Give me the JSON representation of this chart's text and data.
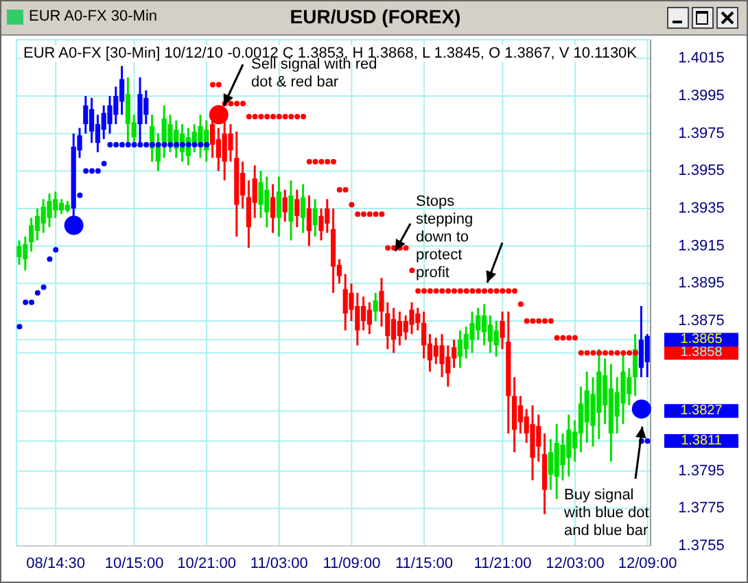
{
  "chart_data": {
    "type": "candlestick",
    "title": "EUR/USD (FOREX)",
    "subtitle": "EUR A0-FX [30-Min] 10/12/10  -0.0012 C 1.3853, H 1.3868, L 1.3845, O 1.3867, V 10.1130K",
    "annotations": [
      "EUR A0-FX 30-Min",
      "Sell signal with red dot & red bar",
      "Stops stepping down to protect profit",
      "Buy signal with blue dot and blue bar"
    ],
    "categories": [
      null,
      null,
      null,
      null,
      null,
      null,
      "08/14:30",
      null,
      null,
      null,
      null,
      null,
      null,
      null,
      null,
      null,
      null,
      null,
      null,
      "10/15:00",
      null,
      null,
      null,
      null,
      null,
      null,
      null,
      null,
      null,
      null,
      null,
      "10/21:00",
      null,
      null,
      null,
      null,
      null,
      null,
      null,
      null,
      null,
      null,
      null,
      "11/03:00",
      null,
      null,
      null,
      null,
      null,
      null,
      null,
      null,
      null,
      null,
      null,
      "11/09:00",
      null,
      null,
      null,
      null,
      null,
      null,
      null,
      null,
      null,
      null,
      null,
      "11/15:00",
      null,
      null,
      null,
      null,
      null,
      null,
      null,
      null,
      null,
      null,
      null,
      null,
      "11/21:00",
      null,
      null,
      null,
      null,
      null,
      null,
      null,
      null,
      null,
      null,
      null,
      "12/03:00",
      null,
      null,
      null,
      null,
      null,
      null,
      null,
      null,
      null,
      null,
      null,
      "12/09:00"
    ],
    "ohlc": [
      [
        1.3909,
        1.3918,
        1.3905,
        1.3915
      ],
      [
        1.3908,
        1.392,
        1.3902,
        1.3916
      ],
      [
        1.3917,
        1.393,
        1.3912,
        1.3926
      ],
      [
        1.3923,
        1.3935,
        1.3918,
        1.3931
      ],
      [
        1.3927,
        1.394,
        1.3922,
        1.3936
      ],
      [
        1.393,
        1.3943,
        1.3925,
        1.3939
      ],
      [
        1.3934,
        1.3944,
        1.393,
        1.394
      ],
      [
        1.3934,
        1.394,
        1.3932,
        1.3938
      ],
      [
        1.3934,
        1.3939,
        1.3933,
        1.3937
      ],
      [
        1.3935,
        1.3975,
        1.3925,
        1.3968
      ],
      [
        1.3966,
        1.3978,
        1.3962,
        1.3974
      ],
      [
        1.398,
        1.3995,
        1.3975,
        1.399
      ],
      [
        1.3976,
        1.3994,
        1.397,
        1.3988
      ],
      [
        1.397,
        1.3985,
        1.3965,
        1.398
      ],
      [
        1.3977,
        1.399,
        1.3972,
        1.3986
      ],
      [
        1.398,
        1.3995,
        1.3975,
        1.399
      ],
      [
        1.3985,
        1.4,
        1.398,
        1.3995
      ],
      [
        1.3992,
        1.4011,
        1.3985,
        1.4004
      ],
      [
        1.398,
        1.4005,
        1.397,
        1.3996
      ],
      [
        1.3973,
        1.3985,
        1.3968,
        1.3981
      ],
      [
        1.398,
        1.4005,
        1.397,
        1.3996
      ],
      [
        1.3985,
        1.3998,
        1.398,
        1.3994
      ],
      [
        1.3967,
        1.3985,
        1.396,
        1.3979
      ],
      [
        1.396,
        1.3975,
        1.3955,
        1.397
      ],
      [
        1.397,
        1.399,
        1.3962,
        1.3983
      ],
      [
        1.397,
        1.3985,
        1.3965,
        1.398
      ],
      [
        1.3967,
        1.3982,
        1.3962,
        1.3977
      ],
      [
        1.3965,
        1.398,
        1.396,
        1.3975
      ],
      [
        1.3963,
        1.3978,
        1.3958,
        1.3973
      ],
      [
        1.3969,
        1.398,
        1.3965,
        1.3976
      ],
      [
        1.3968,
        1.3985,
        1.3962,
        1.3979
      ],
      [
        1.3966,
        1.3982,
        1.396,
        1.3977
      ],
      [
        1.398,
        1.3986,
        1.3962,
        1.3969
      ],
      [
        1.3972,
        1.3978,
        1.3955,
        1.3962
      ],
      [
        1.3975,
        1.3983,
        1.395,
        1.396
      ],
      [
        1.3975,
        1.398,
        1.396,
        1.3966
      ],
      [
        1.3962,
        1.3976,
        1.392,
        1.3937
      ],
      [
        1.3954,
        1.396,
        1.3935,
        1.3942
      ],
      [
        1.3941,
        1.395,
        1.3914,
        1.3925
      ],
      [
        1.3951,
        1.3958,
        1.393,
        1.3938
      ],
      [
        1.3937,
        1.3955,
        1.393,
        1.3949
      ],
      [
        1.3933,
        1.3952,
        1.3925,
        1.3945
      ],
      [
        1.3941,
        1.3948,
        1.3922,
        1.393
      ],
      [
        1.393,
        1.3952,
        1.392,
        1.3944
      ],
      [
        1.3941,
        1.3945,
        1.3928,
        1.3933
      ],
      [
        1.3928,
        1.395,
        1.3918,
        1.3942
      ],
      [
        1.394,
        1.3945,
        1.3925,
        1.3931
      ],
      [
        1.393,
        1.3948,
        1.3922,
        1.3941
      ],
      [
        1.3935,
        1.3942,
        1.3915,
        1.3923
      ],
      [
        1.3926,
        1.394,
        1.392,
        1.3935
      ],
      [
        1.3931,
        1.3935,
        1.3918,
        1.3923
      ],
      [
        1.3935,
        1.394,
        1.3922,
        1.3927
      ],
      [
        1.3924,
        1.3935,
        1.389,
        1.3904
      ],
      [
        1.3905,
        1.3908,
        1.3895,
        1.3899
      ],
      [
        1.3892,
        1.39,
        1.387,
        1.3879
      ],
      [
        1.389,
        1.3895,
        1.3875,
        1.3881
      ],
      [
        1.3883,
        1.389,
        1.3862,
        1.387
      ],
      [
        1.3883,
        1.3888,
        1.387,
        1.3875
      ],
      [
        1.3881,
        1.3885,
        1.3868,
        1.3873
      ],
      [
        1.388,
        1.389,
        1.3875,
        1.3886
      ],
      [
        1.3891,
        1.3898,
        1.3872,
        1.388
      ],
      [
        1.3879,
        1.3885,
        1.386,
        1.3867
      ],
      [
        1.3876,
        1.3882,
        1.3858,
        1.3865
      ],
      [
        1.3875,
        1.388,
        1.3862,
        1.3867
      ],
      [
        1.3875,
        1.3878,
        1.3865,
        1.3869
      ],
      [
        1.3881,
        1.3885,
        1.3868,
        1.3873
      ],
      [
        1.3879,
        1.3882,
        1.387,
        1.3874
      ],
      [
        1.3874,
        1.388,
        1.3855,
        1.3862
      ],
      [
        1.3863,
        1.3868,
        1.3848,
        1.3854
      ],
      [
        1.3862,
        1.3866,
        1.3852,
        1.3856
      ],
      [
        1.3862,
        1.3868,
        1.3845,
        1.3852
      ],
      [
        1.3856,
        1.3862,
        1.384,
        1.3847
      ],
      [
        1.3861,
        1.3865,
        1.385,
        1.3855
      ],
      [
        1.3856,
        1.387,
        1.385,
        1.3865
      ],
      [
        1.386,
        1.3872,
        1.3855,
        1.3868
      ],
      [
        1.3865,
        1.388,
        1.3858,
        1.3874
      ],
      [
        1.387,
        1.3882,
        1.3865,
        1.3878
      ],
      [
        1.3869,
        1.3884,
        1.3862,
        1.3878
      ],
      [
        1.3864,
        1.3878,
        1.3858,
        1.3873
      ],
      [
        1.3862,
        1.3875,
        1.3856,
        1.387
      ],
      [
        1.3875,
        1.388,
        1.386,
        1.3866
      ],
      [
        1.3864,
        1.388,
        1.3815,
        1.3835
      ],
      [
        1.3835,
        1.3845,
        1.3805,
        1.3817
      ],
      [
        1.383,
        1.3835,
        1.3815,
        1.3821
      ],
      [
        1.3824,
        1.3828,
        1.381,
        1.3815
      ],
      [
        1.382,
        1.383,
        1.379,
        1.3802
      ],
      [
        1.3819,
        1.3825,
        1.38,
        1.3808
      ],
      [
        1.3804,
        1.3815,
        1.3772,
        1.3785
      ],
      [
        1.3793,
        1.3812,
        1.3785,
        1.3805
      ],
      [
        1.3792,
        1.382,
        1.378,
        1.381
      ],
      [
        1.3798,
        1.3815,
        1.379,
        1.3809
      ],
      [
        1.3802,
        1.3825,
        1.3792,
        1.3817
      ],
      [
        1.3807,
        1.3822,
        1.38,
        1.3816
      ],
      [
        1.3815,
        1.384,
        1.3805,
        1.3831
      ],
      [
        1.3821,
        1.3848,
        1.381,
        1.3838
      ],
      [
        1.3819,
        1.3845,
        1.3808,
        1.3836
      ],
      [
        1.3826,
        1.386,
        1.3812,
        1.3848
      ],
      [
        1.383,
        1.3855,
        1.382,
        1.3846
      ],
      [
        1.3815,
        1.3852,
        1.38,
        1.3839
      ],
      [
        1.3824,
        1.3845,
        1.3815,
        1.3837
      ],
      [
        1.3831,
        1.3858,
        1.382,
        1.3848
      ],
      [
        1.3836,
        1.385,
        1.383,
        1.3845
      ],
      [
        1.3845,
        1.3868,
        1.3835,
        1.386
      ],
      [
        1.385,
        1.3883,
        1.3845,
        1.3865
      ],
      [
        1.3867,
        1.3868,
        1.3845,
        1.3853
      ]
    ],
    "colors": [
      "#00e000",
      "#00e000",
      "#00e000",
      "#00e000",
      "#00e000",
      "#00e000",
      "#00e000",
      "#00e000",
      "#00e000",
      "#0000ff",
      "#0000ff",
      "#0000ff",
      "#0000ff",
      "#0000ff",
      "#0000ff",
      "#0000ff",
      "#0000ff",
      "#0000ff",
      "#00e000",
      "#00e000",
      "#0000ff",
      "#0000ff",
      "#00e000",
      "#00e000",
      "#00e000",
      "#00e000",
      "#00e000",
      "#00e000",
      "#00e000",
      "#00e000",
      "#00e000",
      "#00e000",
      "#ff0000",
      "#ff0000",
      "#ff0000",
      "#ff0000",
      "#ff0000",
      "#ff0000",
      "#ff0000",
      "#ff0000",
      "#00e000",
      "#00e000",
      "#ff0000",
      "#00e000",
      "#ff0000",
      "#00e000",
      "#ff0000",
      "#00e000",
      "#ff0000",
      "#00e000",
      "#ff0000",
      "#ff0000",
      "#ff0000",
      "#ff0000",
      "#ff0000",
      "#ff0000",
      "#ff0000",
      "#ff0000",
      "#ff0000",
      "#00e000",
      "#ff0000",
      "#ff0000",
      "#ff0000",
      "#ff0000",
      "#ff0000",
      "#ff0000",
      "#ff0000",
      "#ff0000",
      "#ff0000",
      "#ff0000",
      "#ff0000",
      "#ff0000",
      "#ff0000",
      "#00e000",
      "#00e000",
      "#00e000",
      "#00e000",
      "#00e000",
      "#00e000",
      "#00e000",
      "#ff0000",
      "#ff0000",
      "#ff0000",
      "#ff0000",
      "#ff0000",
      "#ff0000",
      "#ff0000",
      "#ff0000",
      "#00e000",
      "#00e000",
      "#00e000",
      "#00e000",
      "#00e000",
      "#00e000",
      "#00e000",
      "#00e000",
      "#00e000",
      "#00e000",
      "#00e000",
      "#00e000",
      "#00e000",
      "#00e000",
      "#00e000",
      "#0000ff",
      "#0000ff"
    ],
    "series": [
      {
        "type": "scatter",
        "color": "#0000ff",
        "values": [
          1.3872,
          1.3885,
          1.3885,
          1.389,
          1.3893,
          1.3908,
          1.3913,
          null,
          null,
          null,
          1.3942,
          1.3955,
          1.3955,
          1.3955,
          1.3959,
          1.3969,
          1.3969,
          1.3969,
          1.3969,
          1.3969,
          1.3969,
          1.3969,
          1.3969,
          1.3969,
          1.3969,
          1.3969,
          1.3969,
          1.3969,
          1.3969,
          1.3969,
          1.3969,
          1.3969,
          null,
          null,
          null,
          null,
          null,
          null,
          null,
          null,
          null,
          null,
          null,
          null,
          null,
          null,
          null,
          null,
          null,
          null,
          null,
          null,
          null,
          null,
          null,
          null,
          null,
          null,
          null,
          null,
          null,
          null,
          null,
          null,
          null,
          null,
          null,
          null,
          null,
          null,
          null,
          null,
          null,
          null,
          null,
          null,
          null,
          null,
          null,
          null,
          null,
          null,
          null,
          null,
          null,
          null,
          null,
          null,
          null,
          null,
          null,
          null,
          null,
          null,
          null,
          null,
          null,
          null,
          null,
          null,
          null,
          null,
          null,
          1.3811,
          1.3811
        ]
      },
      {
        "type": "scatter",
        "color": "#ff0000",
        "values": [
          null,
          null,
          null,
          null,
          null,
          null,
          null,
          null,
          null,
          null,
          null,
          null,
          null,
          null,
          null,
          null,
          null,
          null,
          null,
          null,
          null,
          null,
          null,
          null,
          null,
          null,
          null,
          null,
          null,
          null,
          null,
          null,
          1.4001,
          1.4001,
          1.3991,
          1.3991,
          1.3991,
          1.3991,
          1.3984,
          1.3984,
          1.3984,
          1.3984,
          1.3984,
          1.3984,
          1.3984,
          1.3984,
          1.3984,
          1.3984,
          1.396,
          1.396,
          1.396,
          1.396,
          1.396,
          1.3945,
          1.3945,
          1.3937,
          1.3932,
          1.3932,
          1.3932,
          1.3932,
          1.3932,
          1.3914,
          1.3914,
          1.3914,
          1.3914,
          1.3902,
          1.3891,
          1.3891,
          1.3891,
          1.3891,
          1.3891,
          1.3891,
          1.3891,
          1.3891,
          1.3891,
          1.3891,
          1.3891,
          1.3891,
          1.3891,
          1.3891,
          1.3891,
          1.3891,
          1.3891,
          1.3884,
          1.3875,
          1.3875,
          1.3875,
          1.3875,
          1.3875,
          1.3866,
          1.3866,
          1.3866,
          1.3866,
          1.3858,
          1.3858,
          1.3858,
          1.3858,
          1.3858,
          1.3858,
          1.3858,
          1.3858,
          1.3858,
          1.3858,
          null,
          null
        ]
      },
      {
        "type": "bubble",
        "color": "#0000ff",
        "values": [
          null,
          null,
          null,
          null,
          null,
          null,
          null,
          null,
          null,
          1.3926,
          null,
          null,
          null,
          null,
          null,
          null,
          null,
          null,
          null,
          null,
          null,
          null,
          null,
          null,
          null,
          null,
          null,
          null,
          null,
          null,
          null,
          null,
          null,
          null,
          null,
          null,
          null,
          null,
          null,
          null,
          null,
          null,
          null,
          null,
          null,
          null,
          null,
          null,
          null,
          null,
          null,
          null,
          null,
          null,
          null,
          null,
          null,
          null,
          null,
          null,
          null,
          null,
          null,
          null,
          null,
          null,
          null,
          null,
          null,
          null,
          null,
          null,
          null,
          null,
          null,
          null,
          null,
          null,
          null,
          null,
          null,
          null,
          null,
          null,
          null,
          null,
          null,
          null,
          null,
          null,
          null,
          null,
          null,
          null,
          null,
          null,
          null,
          null,
          null,
          null,
          null,
          null,
          null,
          1.3828,
          null
        ],
        "sizes": [
          null,
          null,
          null,
          null,
          null,
          null,
          null,
          null,
          null,
          1,
          null,
          null,
          null,
          null,
          null,
          null,
          null,
          null,
          null,
          null,
          null,
          null,
          null,
          null,
          null,
          null,
          null,
          null,
          null,
          null,
          null,
          null,
          null,
          null,
          null,
          null,
          null,
          null,
          null,
          null,
          null,
          null,
          null,
          null,
          null,
          null,
          null,
          null,
          null,
          null,
          null,
          null,
          null,
          null,
          null,
          null,
          null,
          null,
          null,
          null,
          null,
          null,
          null,
          null,
          null,
          null,
          null,
          null,
          null,
          null,
          null,
          null,
          null,
          null,
          null,
          null,
          null,
          null,
          null,
          null,
          null,
          null,
          null,
          null,
          null,
          null,
          null,
          null,
          null,
          null,
          null,
          null,
          null,
          null,
          null,
          null,
          null,
          null,
          null,
          null,
          null,
          null,
          null,
          1,
          null
        ]
      },
      {
        "type": "bubble",
        "color": "#ff0000",
        "values": [
          null,
          null,
          null,
          null,
          null,
          null,
          null,
          null,
          null,
          null,
          null,
          null,
          null,
          null,
          null,
          null,
          null,
          null,
          null,
          null,
          null,
          null,
          null,
          null,
          null,
          null,
          null,
          null,
          null,
          null,
          null,
          null,
          null,
          1.3985,
          null,
          null,
          null,
          null,
          null,
          null,
          null,
          null,
          null,
          null,
          null,
          null,
          null,
          null,
          null,
          null,
          null,
          null,
          null,
          null,
          null,
          null,
          null,
          null,
          null,
          null,
          null,
          null,
          null,
          null,
          null,
          null,
          null,
          null,
          null,
          null,
          null,
          null,
          null,
          null,
          null,
          null,
          null,
          null,
          null,
          null,
          null,
          null,
          null,
          null,
          null,
          null,
          null,
          null,
          null,
          null,
          null,
          null,
          null,
          null,
          null,
          null,
          null,
          null,
          null,
          null,
          null,
          null,
          null,
          null,
          null
        ],
        "sizes": [
          null,
          null,
          null,
          null,
          null,
          null,
          null,
          null,
          null,
          null,
          null,
          null,
          null,
          null,
          null,
          null,
          null,
          null,
          null,
          null,
          null,
          null,
          null,
          null,
          null,
          null,
          null,
          null,
          null,
          null,
          null,
          null,
          null,
          1,
          null,
          null,
          null,
          null,
          null,
          null,
          null,
          null,
          null,
          null,
          null,
          null,
          null,
          null,
          null,
          null,
          null,
          null,
          null,
          null,
          null,
          null,
          null,
          null,
          null,
          null,
          null,
          null,
          null,
          null,
          null,
          null,
          null,
          null,
          null,
          null,
          null,
          null,
          null,
          null,
          null,
          null,
          null,
          null,
          null,
          null,
          null,
          null,
          null,
          null,
          null,
          null,
          null,
          null,
          null,
          null,
          null,
          null,
          null,
          null,
          null,
          null,
          null,
          null,
          null,
          null,
          null,
          null,
          null,
          null,
          null
        ]
      }
    ],
    "ylim": [
      1.3755,
      1.4025
    ],
    "yticks": [
      1.3755,
      1.3775,
      1.3795,
      1.3811,
      1.3827,
      1.3858,
      1.3865,
      1.3875,
      1.3895,
      1.3915,
      1.3935,
      1.3955,
      1.3975,
      1.3995,
      1.4015
    ],
    "grid": true,
    "marker": "circle"
  }
}
